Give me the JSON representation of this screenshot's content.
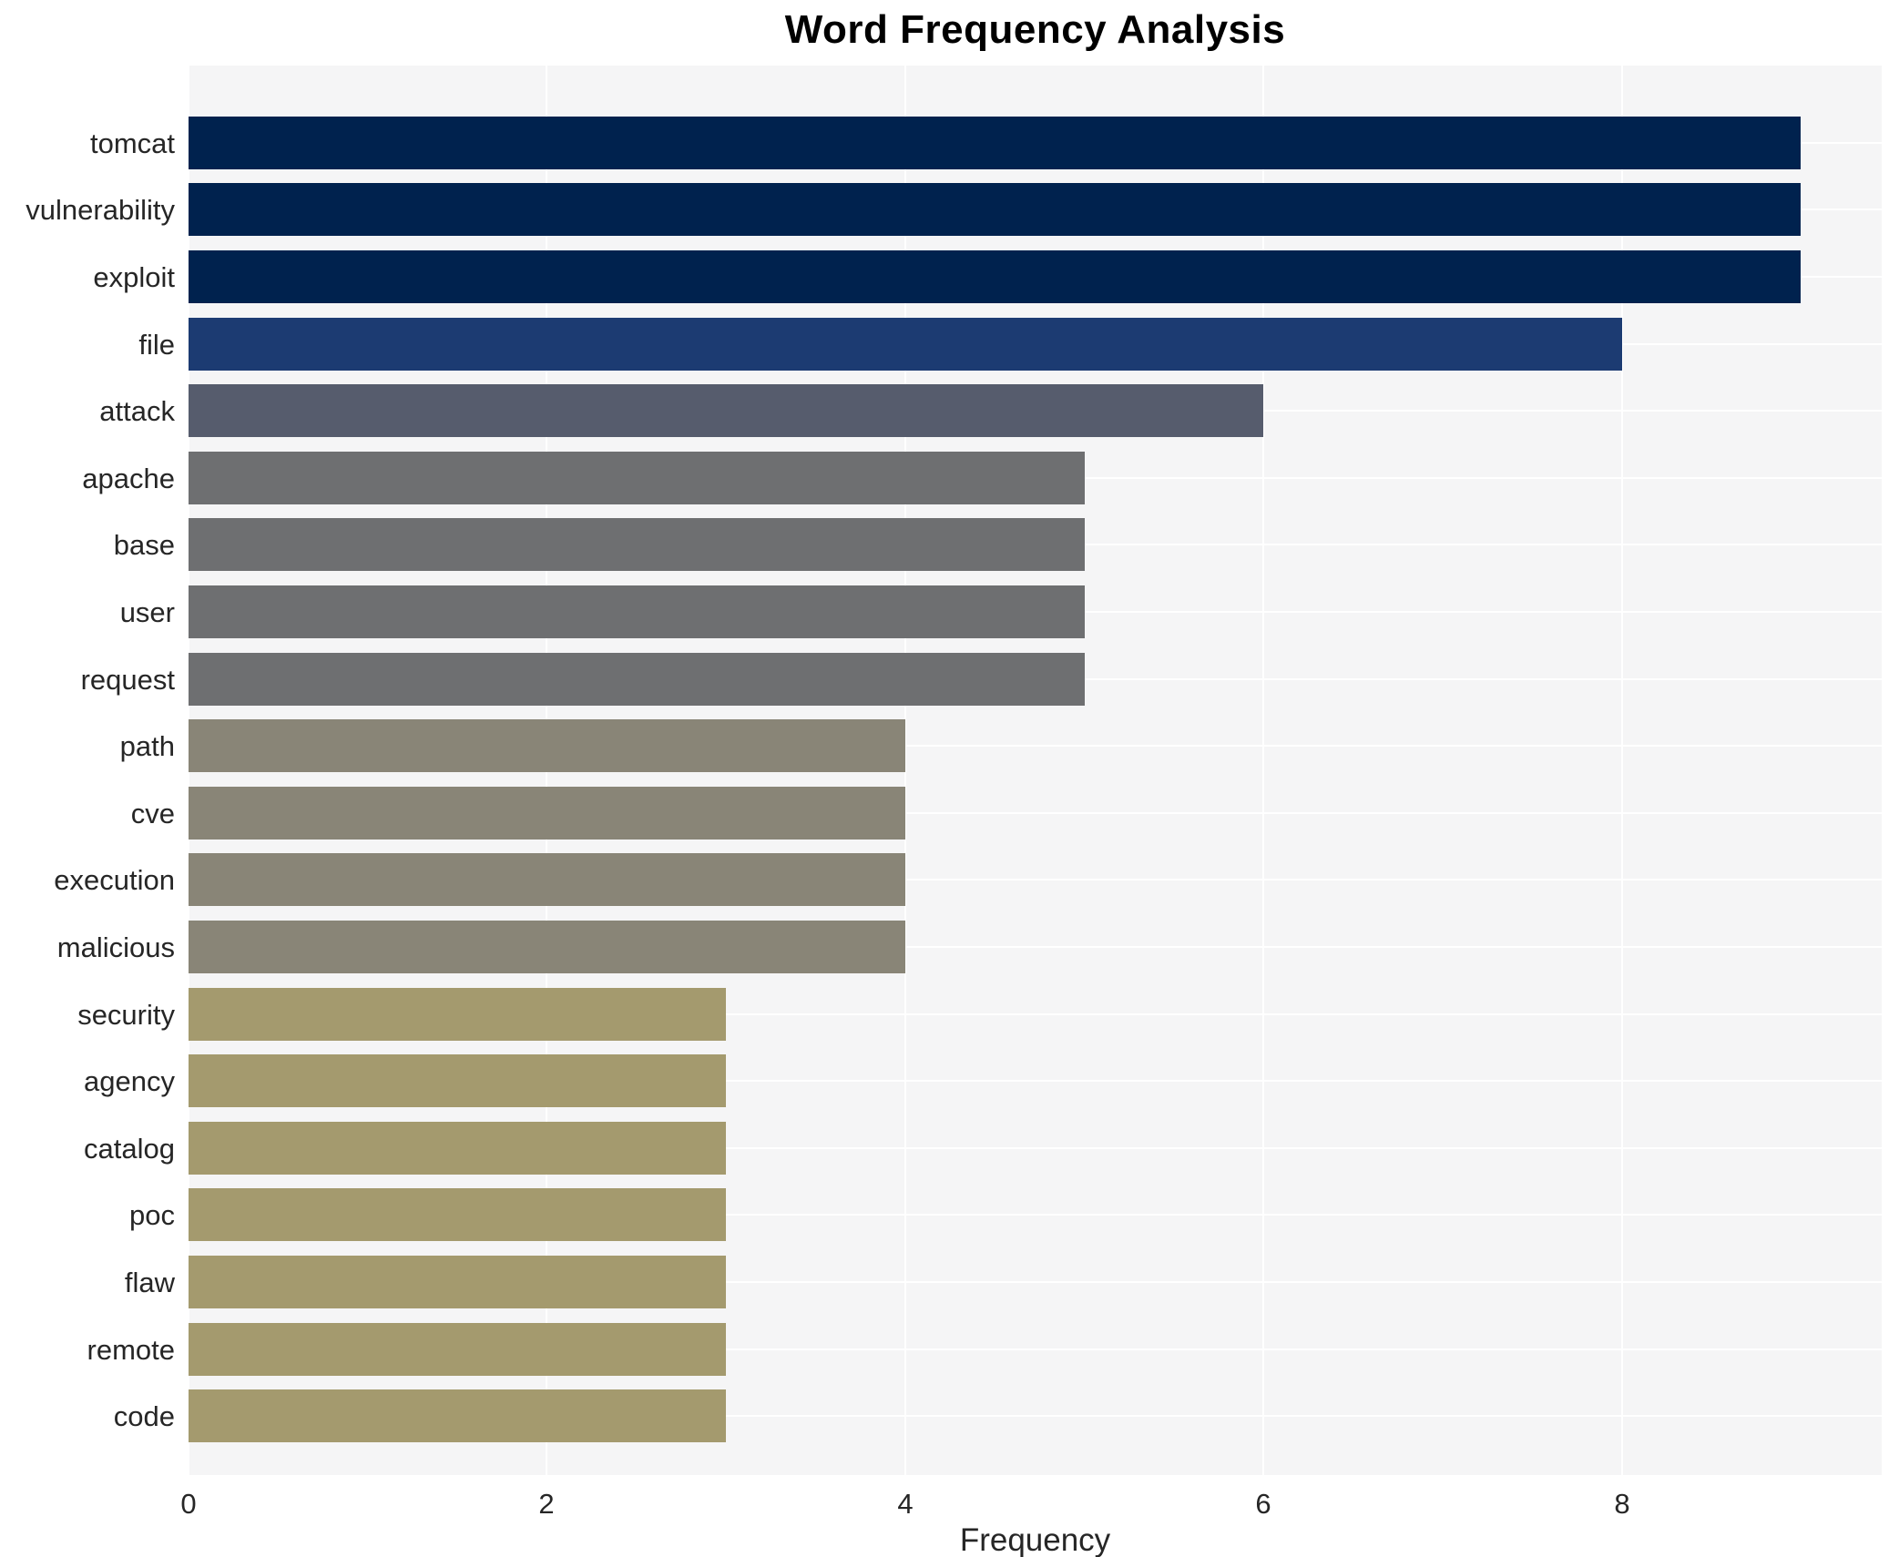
{
  "title": "Word Frequency Analysis",
  "xlabel": "Frequency",
  "colors": {
    "plot_background": "#f5f5f6",
    "gridline": "#ffffff",
    "text": "#262626",
    "title_text": "#000000",
    "figure_background": "#ffffff"
  },
  "chart_data": {
    "type": "bar",
    "orientation": "horizontal",
    "title": "Word Frequency Analysis",
    "xlabel": "Frequency",
    "ylabel": "",
    "categories": [
      "tomcat",
      "vulnerability",
      "exploit",
      "file",
      "attack",
      "apache",
      "base",
      "user",
      "request",
      "path",
      "cve",
      "execution",
      "malicious",
      "security",
      "agency",
      "catalog",
      "poc",
      "flaw",
      "remote",
      "code"
    ],
    "values": [
      9,
      9,
      9,
      8,
      6,
      5,
      5,
      5,
      5,
      4,
      4,
      4,
      4,
      3,
      3,
      3,
      3,
      3,
      3,
      3
    ],
    "bar_colors": [
      "#00224e",
      "#00224e",
      "#00224e",
      "#1c3b72",
      "#565c6d",
      "#6e6f71",
      "#6e6f71",
      "#6e6f71",
      "#6e6f71",
      "#898577",
      "#898577",
      "#898577",
      "#898577",
      "#a49a6e",
      "#a49a6e",
      "#a49a6e",
      "#a49a6e",
      "#a49a6e",
      "#a49a6e",
      "#a49a6e"
    ],
    "xlim": [
      0,
      9.45
    ],
    "xticks": [
      0,
      2,
      4,
      6,
      8
    ],
    "grid": true,
    "legend": false,
    "colormap": "cividis-reversed-by-frequency"
  }
}
